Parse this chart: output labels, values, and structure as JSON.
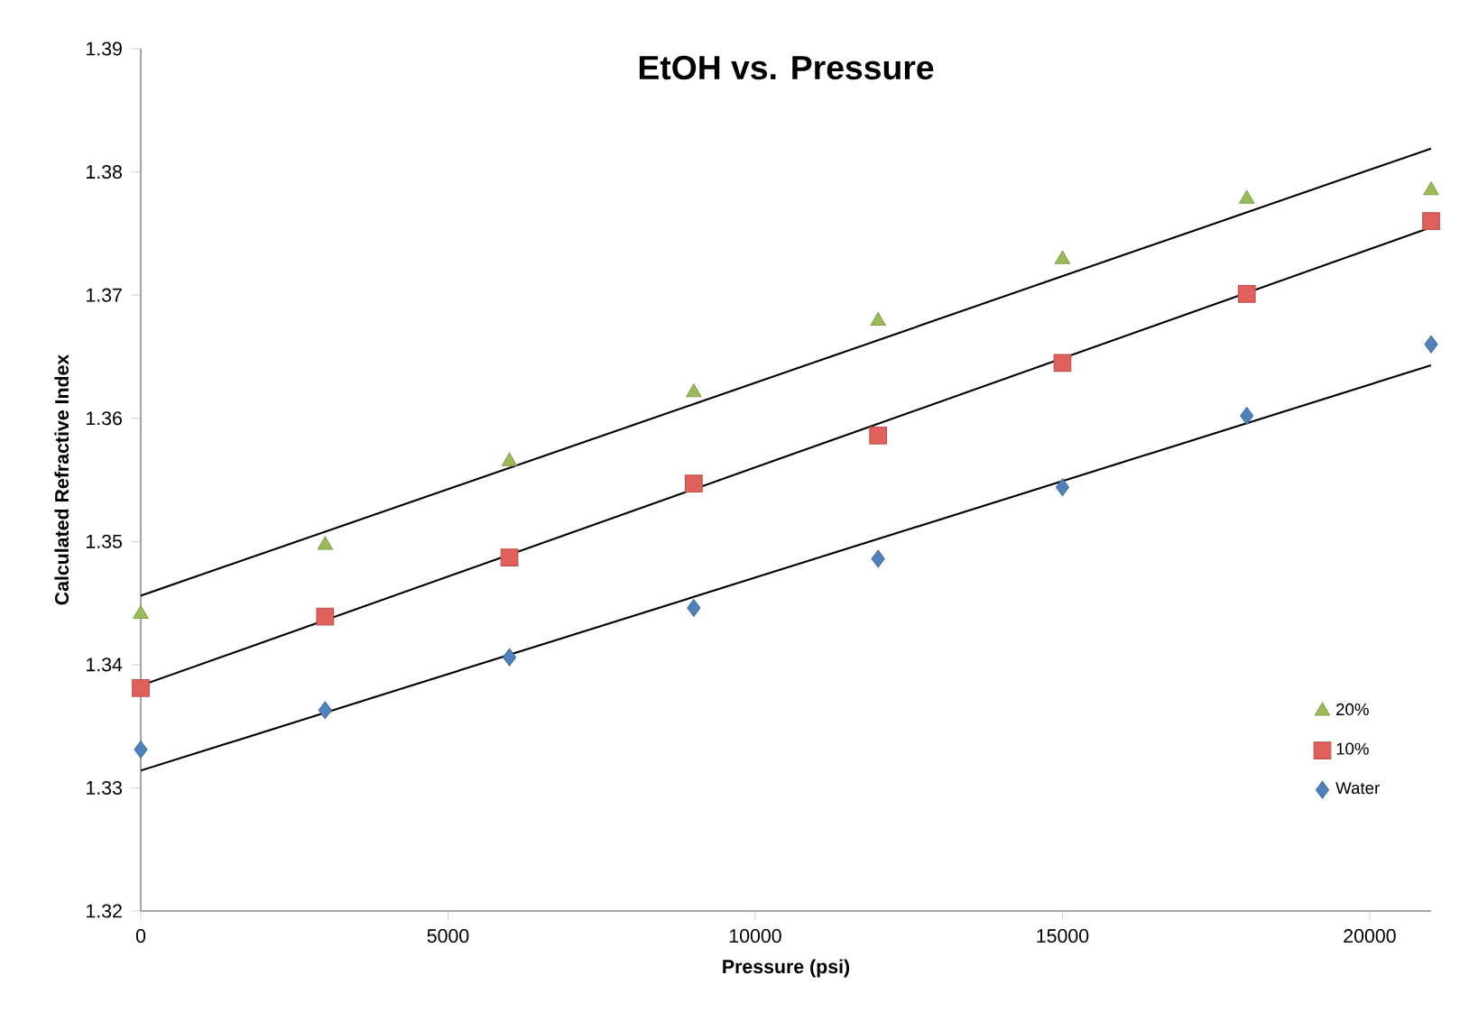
{
  "chart_data": {
    "type": "scatter",
    "title": "EtOH vs. Pressure",
    "xlabel": "Pressure (psi)",
    "ylabel": "Calculated Refractive Index",
    "xlim": [
      0,
      21000
    ],
    "ylim": [
      1.32,
      1.39
    ],
    "xticks": [
      0,
      5000,
      10000,
      15000,
      20000
    ],
    "yticks": [
      1.32,
      1.33,
      1.34,
      1.35,
      1.36,
      1.37,
      1.38,
      1.39
    ],
    "legend": "right",
    "grid": false,
    "series": [
      {
        "name": "20%",
        "marker": "triangle",
        "color": "#9bbb59",
        "x": [
          0,
          3000,
          6000,
          9000,
          12000,
          15000,
          18000,
          21000
        ],
        "values": [
          1.3441,
          1.3497,
          1.3565,
          1.3621,
          1.3679,
          1.3729,
          1.3778,
          1.3785
        ]
      },
      {
        "name": "10%",
        "marker": "square",
        "color": "#e0605c",
        "x": [
          0,
          3000,
          6000,
          9000,
          12000,
          15000,
          18000,
          21000
        ],
        "values": [
          1.3381,
          1.3439,
          1.3487,
          1.3547,
          1.3586,
          1.3645,
          1.3701,
          1.376
        ]
      },
      {
        "name": "Water",
        "marker": "diamond",
        "color": "#4f81bd",
        "x": [
          0,
          3000,
          6000,
          9000,
          12000,
          15000,
          18000,
          21000
        ],
        "values": [
          1.3331,
          1.3363,
          1.3406,
          1.3446,
          1.3486,
          1.3544,
          1.3602,
          1.366
        ]
      },
      {
        "type": "line",
        "marker": "none",
        "line_style": "solid",
        "color": "#000000",
        "x": [
          0,
          21000
        ],
        "values": [
          1.3456,
          1.3819
        ]
      },
      {
        "type": "line",
        "marker": "none",
        "line_style": "solid",
        "color": "#000000",
        "x": [
          0,
          21000
        ],
        "values": [
          1.3383,
          1.3755
        ]
      },
      {
        "type": "line",
        "marker": "none",
        "line_style": "solid",
        "color": "#000000",
        "x": [
          0,
          21000
        ],
        "values": [
          1.3314,
          1.3643
        ]
      }
    ]
  }
}
